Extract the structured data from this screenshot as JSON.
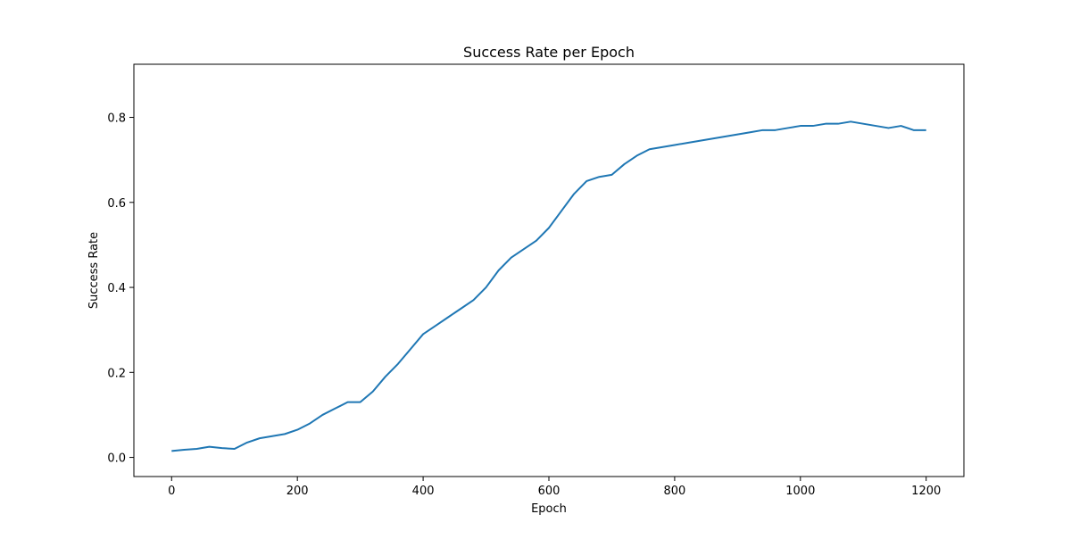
{
  "chart_data": {
    "type": "line",
    "title": "Success Rate per Epoch",
    "xlabel": "Epoch",
    "ylabel": "Success Rate",
    "xlim": [
      -60,
      1260
    ],
    "ylim": [
      -0.045,
      0.925
    ],
    "grid": false,
    "legend": "none",
    "x_ticks": [
      0,
      200,
      400,
      600,
      800,
      1000,
      1200
    ],
    "x_tick_labels": [
      "0",
      "200",
      "400",
      "600",
      "800",
      "1000",
      "1200"
    ],
    "y_ticks": [
      0.0,
      0.2,
      0.4,
      0.6,
      0.8
    ],
    "y_tick_labels": [
      "0.0",
      "0.2",
      "0.4",
      "0.6",
      "0.8"
    ],
    "series": [
      {
        "color": "#1f77b4",
        "x": [
          0,
          20,
          40,
          60,
          80,
          100,
          120,
          140,
          160,
          180,
          200,
          220,
          240,
          260,
          280,
          300,
          320,
          340,
          360,
          380,
          400,
          420,
          440,
          460,
          480,
          500,
          520,
          540,
          560,
          580,
          600,
          620,
          640,
          660,
          680,
          700,
          720,
          740,
          760,
          780,
          800,
          820,
          840,
          860,
          880,
          900,
          920,
          940,
          960,
          980,
          1000,
          1020,
          1040,
          1060,
          1080,
          1100,
          1120,
          1140,
          1160,
          1180,
          1200
        ],
        "y": [
          0.015,
          0.018,
          0.02,
          0.025,
          0.022,
          0.02,
          0.035,
          0.045,
          0.05,
          0.055,
          0.065,
          0.08,
          0.1,
          0.115,
          0.13,
          0.13,
          0.155,
          0.19,
          0.22,
          0.255,
          0.29,
          0.31,
          0.33,
          0.35,
          0.37,
          0.4,
          0.44,
          0.47,
          0.49,
          0.51,
          0.54,
          0.58,
          0.62,
          0.65,
          0.66,
          0.665,
          0.69,
          0.71,
          0.725,
          0.73,
          0.735,
          0.74,
          0.745,
          0.75,
          0.755,
          0.76,
          0.765,
          0.77,
          0.77,
          0.775,
          0.78,
          0.78,
          0.785,
          0.785,
          0.79,
          0.785,
          0.78,
          0.775,
          0.78,
          0.77,
          0.77
        ]
      }
    ]
  }
}
